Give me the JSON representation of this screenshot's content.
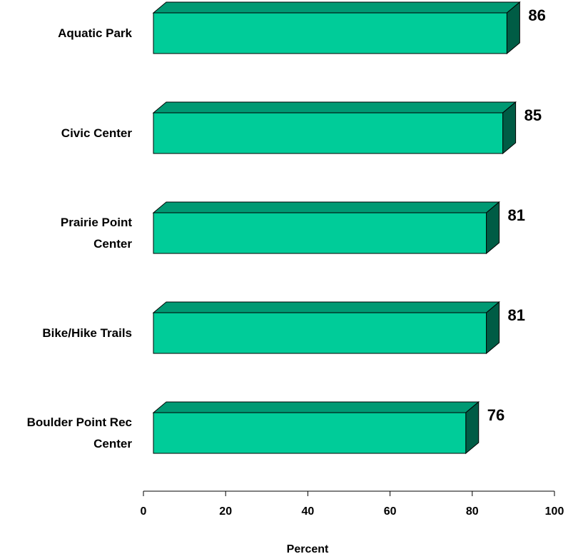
{
  "chart_data": {
    "type": "bar",
    "orientation": "horizontal",
    "categories": [
      "Aquatic Park",
      "Civic Center",
      "Prairie Point Center",
      "Bike/Hike Trails",
      "Boulder Point Rec Center"
    ],
    "values": [
      86,
      85,
      81,
      81,
      76
    ],
    "color": "#00cc99",
    "xlim": [
      0,
      100
    ],
    "xticks": [
      0,
      20,
      40,
      60,
      80,
      100
    ],
    "xlabel": "Percent"
  }
}
